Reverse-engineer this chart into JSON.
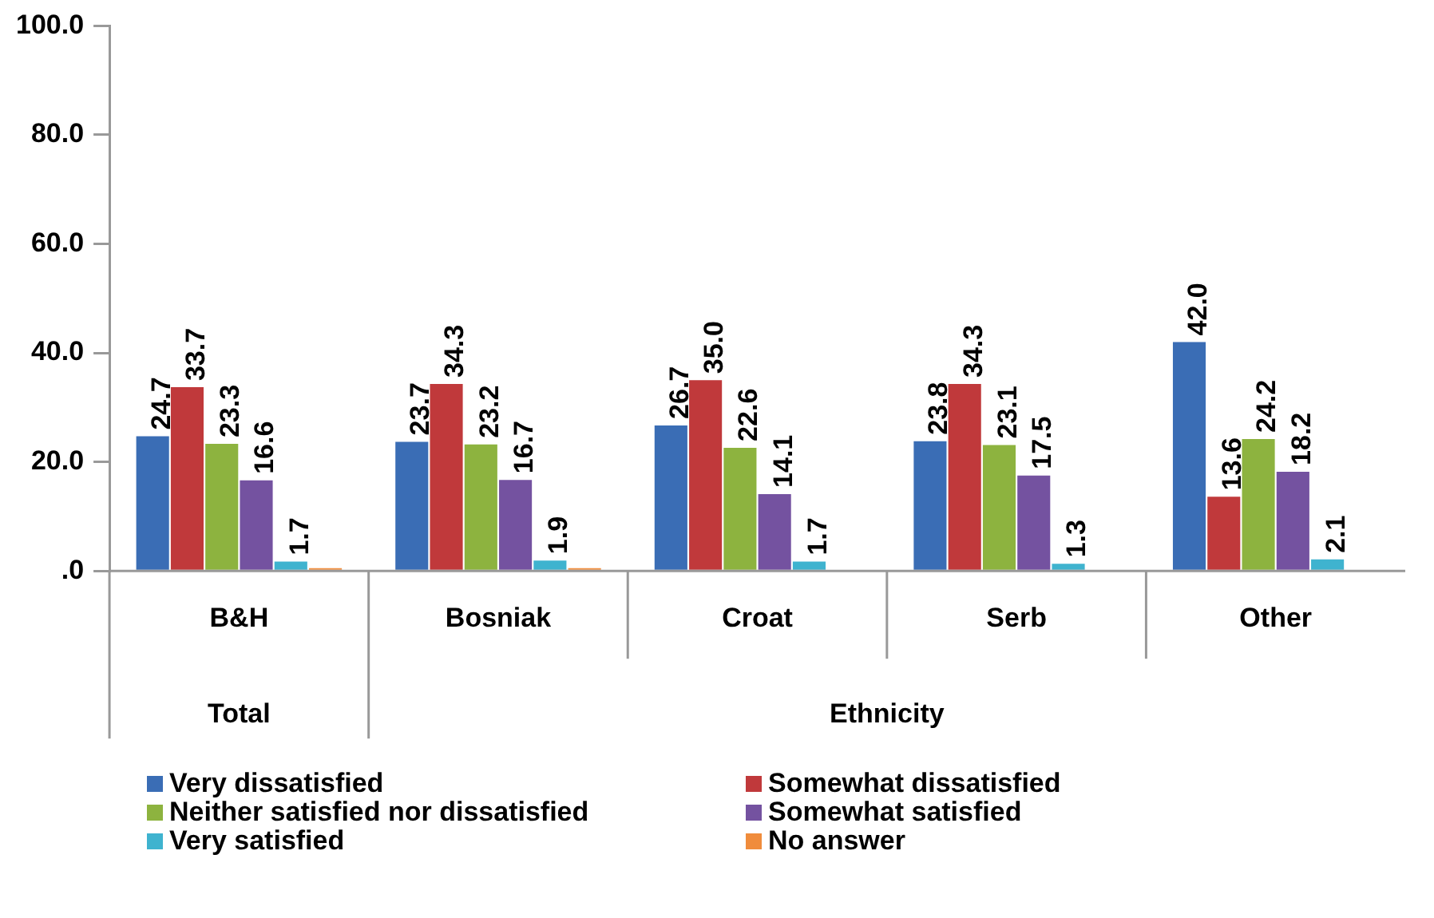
{
  "chart_data": {
    "type": "bar",
    "categories": [
      "B&H",
      "Bosniak",
      "Croat",
      "Serb",
      "Other"
    ],
    "series": [
      {
        "name": "Very dissatisfied",
        "color": "#3a6db5",
        "values": [
          24.7,
          23.7,
          26.7,
          23.8,
          42.0
        ],
        "value_labels": [
          "24.7",
          "23.7",
          "26.7",
          "23.8",
          "42.0"
        ]
      },
      {
        "name": "Somewhat dissatisfied",
        "color": "#c0393b",
        "values": [
          33.7,
          34.3,
          35.0,
          34.3,
          13.6
        ],
        "value_labels": [
          "33.7",
          "34.3",
          "35.0",
          "34.3",
          "13.6"
        ]
      },
      {
        "name": "Neither satisfied nor dissatisfied",
        "color": "#8db33f",
        "values": [
          23.3,
          23.2,
          22.6,
          23.1,
          24.2
        ],
        "value_labels": [
          "23.3",
          "23.2",
          "22.6",
          "23.1",
          "24.2"
        ]
      },
      {
        "name": "Somewhat satisfied",
        "color": "#7452a0",
        "values": [
          16.6,
          16.7,
          14.1,
          17.5,
          18.2
        ],
        "value_labels": [
          "16.6",
          "16.7",
          "14.1",
          "17.5",
          "18.2"
        ]
      },
      {
        "name": "Very satisfied",
        "color": "#3fb3cf",
        "values": [
          1.7,
          1.9,
          1.7,
          1.3,
          2.1
        ],
        "value_labels": [
          "1.7",
          "1.9",
          "1.7",
          "1.3",
          "2.1"
        ]
      },
      {
        "name": "No answer",
        "color": "#f08c3c",
        "values": [
          0.5,
          0.5,
          null,
          null,
          null
        ],
        "value_labels": [
          null,
          null,
          null,
          null,
          null
        ]
      }
    ],
    "ylim": [
      0,
      100
    ],
    "yticks": [
      {
        "value": 0,
        "label": ".0"
      },
      {
        "value": 20,
        "label": "20.0"
      },
      {
        "value": 40,
        "label": "40.0"
      },
      {
        "value": 60,
        "label": "60.0"
      },
      {
        "value": 80,
        "label": "80.0"
      },
      {
        "value": 100,
        "label": "100.0"
      }
    ],
    "annotations": [
      "Total",
      "Ethnicity"
    ],
    "grid": false,
    "legend": "bottom"
  }
}
